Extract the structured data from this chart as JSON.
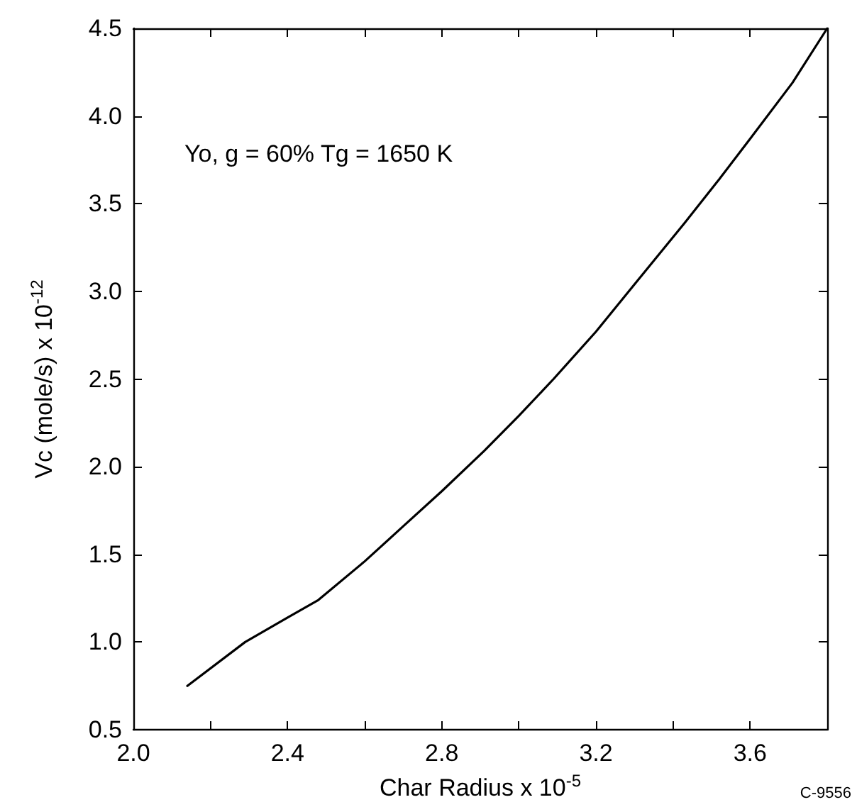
{
  "chart_data": {
    "type": "line",
    "xlabel": "Char Radius x 10$^{-5}$",
    "ylabel": "Vc (mole/s) x 10$^{-12}$",
    "annotations": [
      "Yo, g = 60% Tg = 1650 K",
      "C-9556"
    ],
    "x": [
      2.14,
      2.29,
      2.4,
      2.48,
      2.6,
      2.7,
      2.8,
      2.91,
      3.0,
      3.09,
      3.2,
      3.3,
      3.43,
      3.52,
      3.6,
      3.71,
      3.8
    ],
    "series": [
      {
        "color": "#000000",
        "values": [
          0.75,
          1.0,
          1.14,
          1.24,
          1.46,
          1.66,
          1.86,
          2.09,
          2.29,
          2.5,
          2.77,
          3.04,
          3.39,
          3.64,
          3.87,
          4.19,
          4.5
        ]
      }
    ],
    "xlim": [
      2.0,
      3.8
    ],
    "xticks": [
      {
        "value": 2,
        "label": "2.0"
      },
      {
        "value": 2.2,
        "label": null
      },
      2.4,
      {
        "value": 2.6,
        "label": null
      },
      2.8,
      {
        "value": 3,
        "label": null
      },
      3.2,
      {
        "value": 3.4,
        "label": null
      },
      3.6,
      {
        "value": 3.8,
        "label": null
      }
    ],
    "ylim": [
      0.5,
      4.5
    ],
    "yticks": [
      0.5,
      {
        "value": 1,
        "label": "1.0"
      },
      1.5,
      {
        "value": 2,
        "label": "2.0"
      },
      2.5,
      {
        "value": 3,
        "label": "3.0"
      },
      3.5,
      {
        "value": 4,
        "label": "4.0"
      },
      4.5
    ],
    "grid": false,
    "marker": "none",
    "line_style": "solid"
  }
}
